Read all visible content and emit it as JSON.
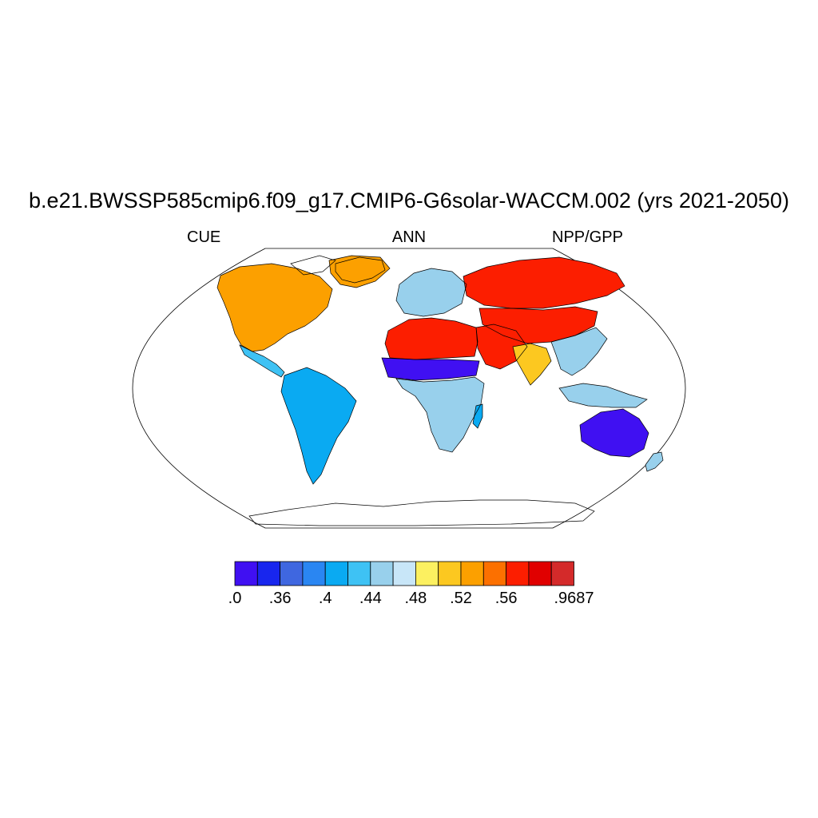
{
  "title": "b.e21.BWSSP585cmip6.f09_g17.CMIP6-G6solar-WACCM.002 (yrs 2021-2050)",
  "subtitles": {
    "left": "CUE",
    "center": "ANN",
    "right": "NPP/GPP"
  },
  "colorbar": {
    "colors": [
      "#4010f2",
      "#1826ee",
      "#3f67e0",
      "#2a86f2",
      "#0aaaf2",
      "#3ec2f4",
      "#98d0ec",
      "#c8e6f8",
      "#fcf060",
      "#fcc820",
      "#fca000",
      "#fc7000",
      "#fc1e00",
      "#e00000",
      "#d42a2a"
    ],
    "labels": [
      {
        "text": ".0",
        "index": 0
      },
      {
        "text": ".36",
        "index": 2
      },
      {
        "text": ".4",
        "index": 4
      },
      {
        "text": ".44",
        "index": 6
      },
      {
        "text": ".48",
        "index": 8
      },
      {
        "text": ".52",
        "index": 10
      },
      {
        "text": ".56",
        "index": 12
      },
      {
        "text": ".9687",
        "index": 15
      }
    ]
  },
  "projection": "robinson",
  "regions": [
    {
      "name": "north-america",
      "value": 0.52
    },
    {
      "name": "greenland-coast",
      "value": 0.52
    },
    {
      "name": "central-america",
      "value": 0.42
    },
    {
      "name": "south-america",
      "value": 0.41
    },
    {
      "name": "europe",
      "value": 0.44
    },
    {
      "name": "north-africa-sahara",
      "value": 0.56
    },
    {
      "name": "sahel-band",
      "value": 0.05
    },
    {
      "name": "central-southern-africa",
      "value": 0.44
    },
    {
      "name": "arabia",
      "value": 0.56
    },
    {
      "name": "russia-siberia",
      "value": 0.56
    },
    {
      "name": "central-asia",
      "value": 0.56
    },
    {
      "name": "south-east-asia",
      "value": 0.45
    },
    {
      "name": "india",
      "value": 0.5
    },
    {
      "name": "indonesia",
      "value": 0.44
    },
    {
      "name": "australia",
      "value": 0.2
    },
    {
      "name": "new-zealand",
      "value": 0.44
    },
    {
      "name": "madagascar",
      "value": 0.4
    }
  ]
}
